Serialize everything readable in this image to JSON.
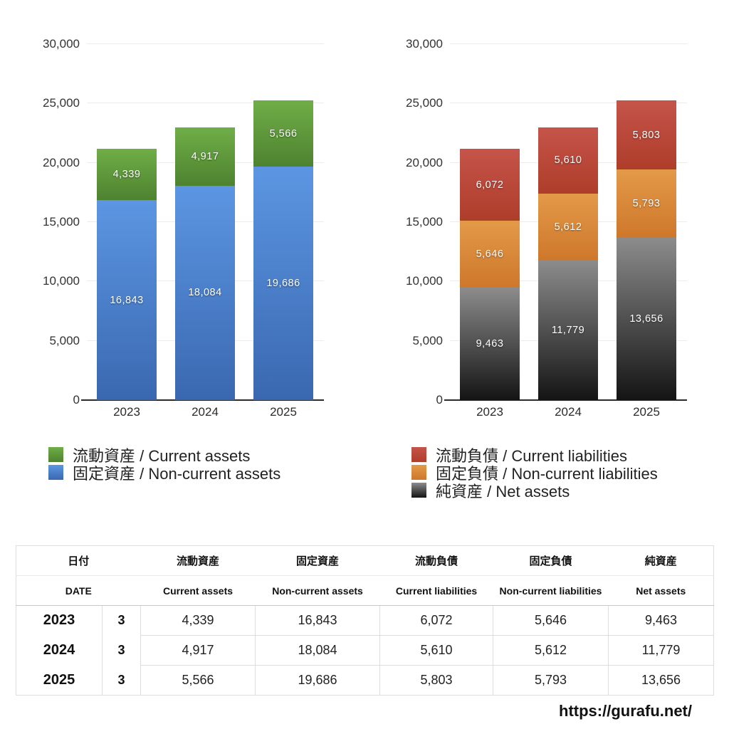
{
  "page": {
    "background": "#ffffff"
  },
  "chart_data": [
    {
      "type": "bar",
      "stacked": true,
      "title": "",
      "categories": [
        "2023",
        "2024",
        "2025"
      ],
      "series": [
        {
          "name": "固定資産 / Non-current assets",
          "values": [
            16843,
            18084,
            19686
          ],
          "color_top": "#5c96e2",
          "color_bottom": "#3a68b0"
        },
        {
          "name": "流動資産 / Current assets",
          "values": [
            4339,
            4917,
            5566
          ],
          "color_top": "#6fae47",
          "color_bottom": "#4e8230"
        }
      ],
      "legend_order": [
        1,
        0
      ],
      "legend_position": "bottom-left",
      "ylim": [
        0,
        30000
      ],
      "ytick_step": 5000,
      "ytick_labels": [
        "0",
        "5,000",
        "10,000",
        "15,000",
        "20,000",
        "25,000",
        "30,000"
      ],
      "grid": true
    },
    {
      "type": "bar",
      "stacked": true,
      "title": "",
      "categories": [
        "2023",
        "2024",
        "2025"
      ],
      "series": [
        {
          "name": "純資産 / Net assets",
          "values": [
            9463,
            11779,
            13656
          ],
          "color_top": "#8c8c8c",
          "color_bottom": "#141414"
        },
        {
          "name": "固定負債 / Non-current liabilities",
          "values": [
            5646,
            5612,
            5793
          ],
          "color_top": "#e39a48",
          "color_bottom": "#ce772b"
        },
        {
          "name": "流動負債 / Current liabilities",
          "values": [
            6072,
            5610,
            5803
          ],
          "color_top": "#c5544a",
          "color_bottom": "#ae3d2a"
        }
      ],
      "legend_order": [
        2,
        1,
        0
      ],
      "legend_position": "bottom-left",
      "ylim": [
        0,
        30000
      ],
      "ytick_step": 5000,
      "ytick_labels": [
        "0",
        "5,000",
        "10,000",
        "15,000",
        "20,000",
        "25,000",
        "30,000"
      ],
      "grid": true
    }
  ],
  "table": {
    "header_row1": [
      "日付",
      "流動資産",
      "固定資産",
      "流動負債",
      "固定負債",
      "純資産"
    ],
    "header_row2": [
      "DATE",
      "Current assets",
      "Non-current assets",
      "Current liabilities",
      "Non-current liabilities",
      "Net assets"
    ],
    "rows": [
      {
        "year": "2023",
        "month": "3",
        "values": [
          "4,339",
          "16,843",
          "6,072",
          "5,646",
          "9,463"
        ]
      },
      {
        "year": "2024",
        "month": "3",
        "values": [
          "4,917",
          "18,084",
          "5,610",
          "5,612",
          "11,779"
        ]
      },
      {
        "year": "2025",
        "month": "3",
        "values": [
          "5,566",
          "19,686",
          "5,803",
          "5,793",
          "13,656"
        ]
      }
    ]
  },
  "footer": {
    "url_text": "https://gurafu.net/"
  }
}
